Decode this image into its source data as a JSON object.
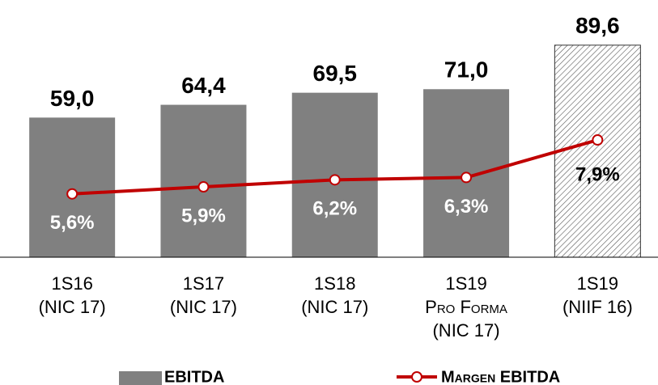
{
  "chart_data": {
    "type": "bar_line",
    "categories": [
      [
        "1S16",
        "(NIC 17)"
      ],
      [
        "1S17",
        "(NIC 17)"
      ],
      [
        "1S18",
        "(NIC 17)"
      ],
      [
        "1S19",
        "Pro Forma",
        "(NIC 17)"
      ],
      [
        "1S19",
        "(NIIF 16)"
      ]
    ],
    "series": [
      {
        "name": "EBITDA",
        "type": "bar",
        "color": "#808080",
        "values": [
          59.0,
          64.4,
          69.5,
          71.0,
          89.6
        ],
        "value_labels": [
          "59,0",
          "64,4",
          "69,5",
          "71,0",
          "89,6"
        ],
        "hatch": [
          false,
          false,
          false,
          false,
          true
        ]
      },
      {
        "name": "Margen EBITDA",
        "type": "line",
        "axis": "y2",
        "color": "#c00000",
        "values": [
          5.6,
          5.9,
          6.2,
          6.3,
          7.9
        ],
        "value_labels": [
          "5,6%",
          "5,9%",
          "6,2%",
          "6,3%",
          "7,9%"
        ]
      }
    ],
    "ylim": [
      0,
      108
    ],
    "y2lim": [
      2.9,
      13.8
    ],
    "legend": "bottom"
  }
}
